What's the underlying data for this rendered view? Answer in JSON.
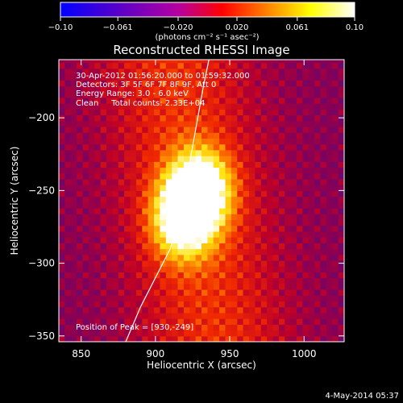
{
  "chart_data": {
    "type": "heatmap",
    "title": "Reconstructed RHESSI Image",
    "xlabel": "Heliocentric X (arcsec)",
    "ylabel": "Heliocentric Y (arcsec)",
    "xlim": [
      835,
      1027
    ],
    "ylim": [
      -354,
      -160
    ],
    "xticks": [
      850,
      900,
      950,
      1000
    ],
    "yticks": [
      -200,
      -250,
      -300,
      -350
    ],
    "colorbar": {
      "min": -0.1,
      "max": 0.1,
      "ticks": [
        "−0.10",
        "−0.061",
        "−0.020",
        "0.020",
        "0.061",
        "0.10"
      ],
      "tick_values": [
        -0.1,
        -0.061,
        -0.02,
        0.02,
        0.061,
        0.1
      ],
      "unit_label": "(photons cm⁻² s⁻¹ asec⁻²)",
      "colors": [
        "#0000ff",
        "#5a00c8",
        "#b400a0",
        "#ff0000",
        "#ff8000",
        "#ffff00",
        "#ffffff"
      ]
    },
    "annotations": [
      "30-Apr-2012 01:56:20.000 to 01:59:32.000",
      "Detectors: 3F 5F 6F 7F 8F 9F, Att 0",
      "Energy Range: 3.0 - 6.0 keV",
      "Clean     Total counts: 2.33E+04"
    ],
    "peak_label": "Position of Peak = [930,-249]",
    "peak": [
      930,
      -249
    ],
    "sources": [
      {
        "x": 930,
        "y": -249,
        "intensity": 0.1
      },
      {
        "x": 918,
        "y": -270,
        "intensity": 0.085
      }
    ],
    "limb_curve": [
      [
        880,
        -354
      ],
      [
        890,
        -330
      ],
      [
        900,
        -310
      ],
      [
        910,
        -290
      ],
      [
        918,
        -260
      ],
      [
        925,
        -220
      ],
      [
        932,
        -180
      ],
      [
        936,
        -160
      ]
    ]
  },
  "footer": {
    "date": "4-May-2014 05:37"
  }
}
